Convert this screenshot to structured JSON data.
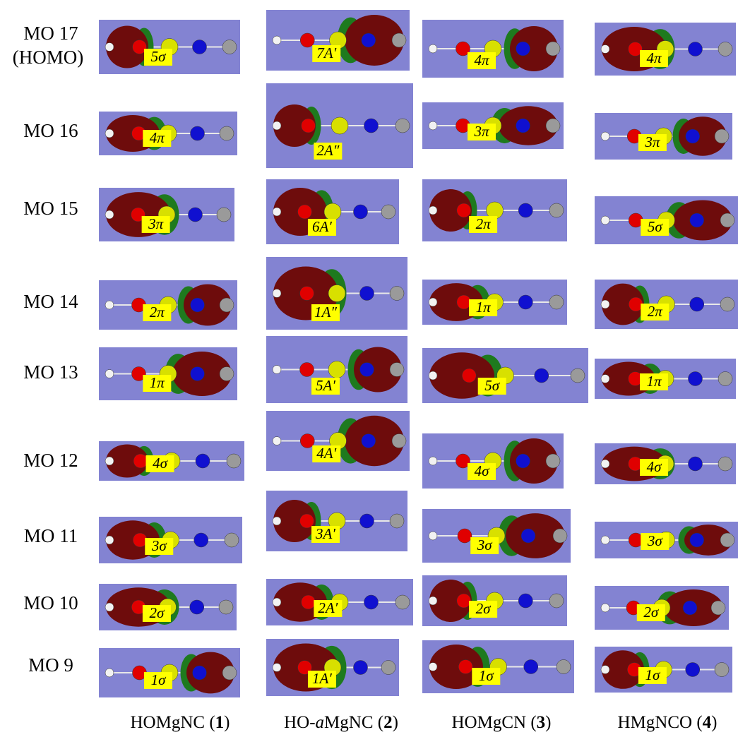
{
  "rows": [
    {
      "label": "MO 17",
      "note": "(HOMO)",
      "cells": [
        "5σ",
        "7A′",
        "4π",
        "4π"
      ]
    },
    {
      "label": "MO 16",
      "cells": [
        "4π",
        "2A″",
        "3π",
        "3π"
      ]
    },
    {
      "label": "MO 15",
      "cells": [
        "3π",
        "6A′",
        "2π",
        "5σ"
      ]
    },
    {
      "label": "MO 14",
      "cells": [
        "2π",
        "1A″",
        "1π",
        "2π"
      ]
    },
    {
      "label": "MO 13",
      "cells": [
        "1π",
        "5A′",
        "5σ",
        "1π"
      ]
    },
    {
      "label": "MO 12",
      "cells": [
        "4σ",
        "4A′",
        "4σ",
        "4σ"
      ]
    },
    {
      "label": "MO 11",
      "cells": [
        "3σ",
        "3A′",
        "3σ",
        "3σ"
      ]
    },
    {
      "label": "MO 10",
      "cells": [
        "2σ",
        "2A′",
        "2σ",
        "2σ"
      ]
    },
    {
      "label": "MO 9",
      "cells": [
        "1σ",
        "1A′",
        "1σ",
        "1σ"
      ]
    }
  ],
  "columns": [
    {
      "parts": [
        "HOMgNC (",
        "1",
        ")"
      ]
    },
    {
      "parts": [
        "HO-",
        "a",
        "MgNC (",
        "2",
        ")"
      ]
    },
    {
      "parts": [
        "HOMgCN (",
        "3",
        ")"
      ]
    },
    {
      "parts": [
        "HMgNCO (",
        "4",
        ")"
      ]
    }
  ]
}
